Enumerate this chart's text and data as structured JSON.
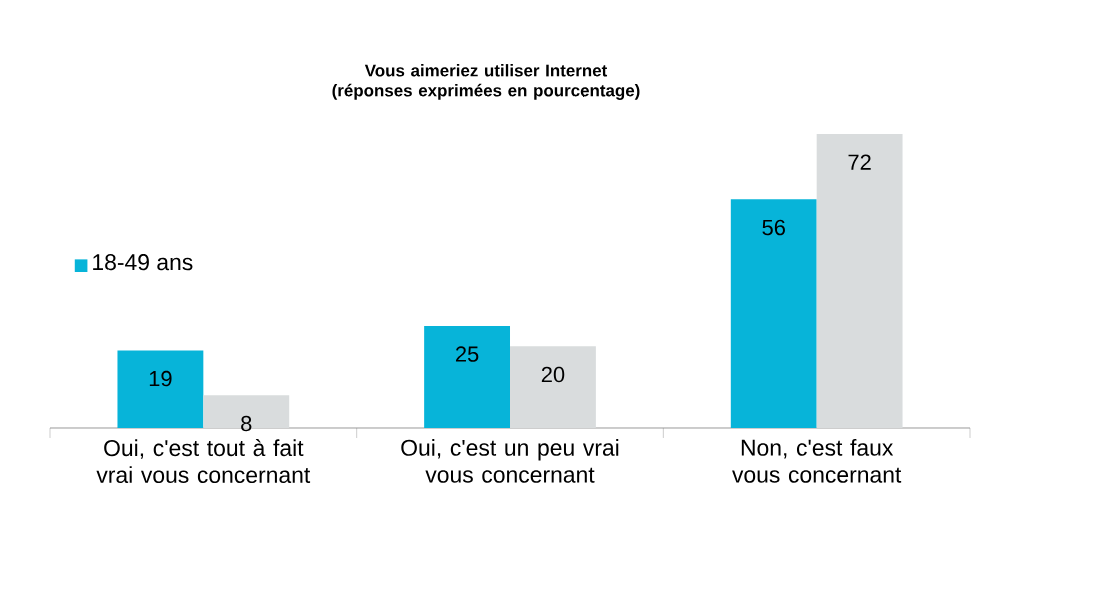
{
  "chart_data": {
    "type": "bar",
    "title": "Vous aimeriez utiliser Internet\n(réponses exprimées en pourcentage)",
    "categories": [
      "Oui, c'est tout à fait vrai vous concernant",
      "Oui, c'est un peu vrai vous concernant",
      "Non, c'est faux vous concernant"
    ],
    "series": [
      {
        "name": "18-49 ans",
        "color": "#07b4d9",
        "values": [
          19,
          25,
          56
        ]
      },
      {
        "color": "#d9dcdd",
        "values": [
          8,
          20,
          72
        ]
      }
    ],
    "data_labels": true,
    "legend": "left"
  }
}
